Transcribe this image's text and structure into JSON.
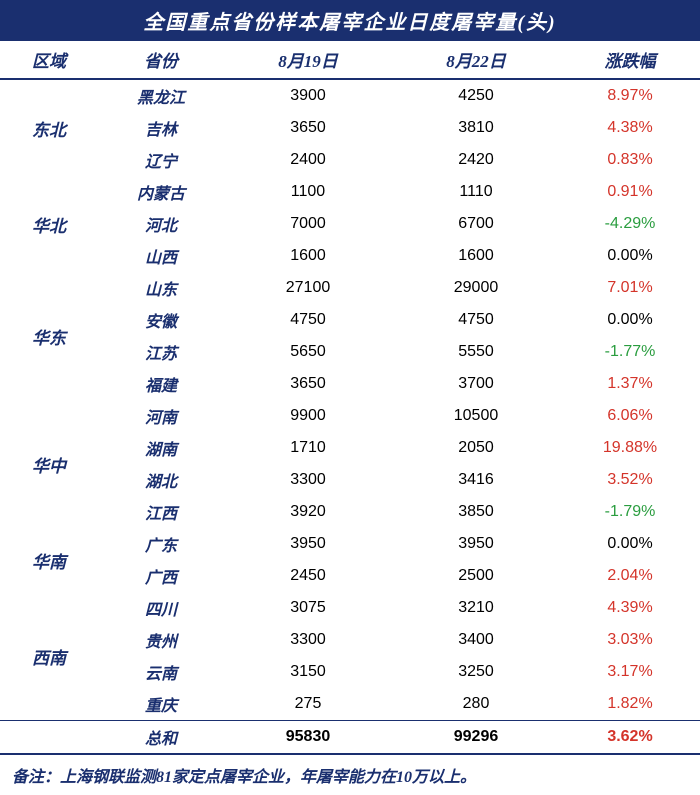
{
  "title": "全国重点省份样本屠宰企业日度屠宰量(头)",
  "headers": {
    "region": "区域",
    "province": "省份",
    "date1": "8月19日",
    "date2": "8月22日",
    "change": "涨跌幅"
  },
  "footer": "备注：上海钢联监测81家定点屠宰企业，年屠宰能力在10万以上。",
  "total": {
    "label": "总和",
    "v1": "95830",
    "v2": "99296",
    "chg": "3.62%",
    "cls": "up"
  },
  "colors": {
    "header_bg": "#1a2f6f",
    "header_text": "#ffffff",
    "up": "#d4342a",
    "down": "#2a9d3f",
    "body_text": "#1a2f6f"
  },
  "groups": [
    {
      "region": "东北",
      "rows": [
        {
          "p": "黑龙江",
          "v1": "3900",
          "v2": "4250",
          "chg": "8.97%",
          "cls": "up"
        },
        {
          "p": "吉林",
          "v1": "3650",
          "v2": "3810",
          "chg": "4.38%",
          "cls": "up"
        },
        {
          "p": "辽宁",
          "v1": "2400",
          "v2": "2420",
          "chg": "0.83%",
          "cls": "up"
        }
      ]
    },
    {
      "region": "华北",
      "rows": [
        {
          "p": "内蒙古",
          "v1": "1100",
          "v2": "1110",
          "chg": "0.91%",
          "cls": "up"
        },
        {
          "p": "河北",
          "v1": "7000",
          "v2": "6700",
          "chg": "-4.29%",
          "cls": "down"
        },
        {
          "p": "山西",
          "v1": "1600",
          "v2": "1600",
          "chg": "0.00%",
          "cls": "flat"
        }
      ]
    },
    {
      "region": "华东",
      "rows": [
        {
          "p": "山东",
          "v1": "27100",
          "v2": "29000",
          "chg": "7.01%",
          "cls": "up"
        },
        {
          "p": "安徽",
          "v1": "4750",
          "v2": "4750",
          "chg": "0.00%",
          "cls": "flat"
        },
        {
          "p": "江苏",
          "v1": "5650",
          "v2": "5550",
          "chg": "-1.77%",
          "cls": "down"
        },
        {
          "p": "福建",
          "v1": "3650",
          "v2": "3700",
          "chg": "1.37%",
          "cls": "up"
        }
      ]
    },
    {
      "region": "华中",
      "rows": [
        {
          "p": "河南",
          "v1": "9900",
          "v2": "10500",
          "chg": "6.06%",
          "cls": "up"
        },
        {
          "p": "湖南",
          "v1": "1710",
          "v2": "2050",
          "chg": "19.88%",
          "cls": "up"
        },
        {
          "p": "湖北",
          "v1": "3300",
          "v2": "3416",
          "chg": "3.52%",
          "cls": "up"
        },
        {
          "p": "江西",
          "v1": "3920",
          "v2": "3850",
          "chg": "-1.79%",
          "cls": "down"
        }
      ]
    },
    {
      "region": "华南",
      "rows": [
        {
          "p": "广东",
          "v1": "3950",
          "v2": "3950",
          "chg": "0.00%",
          "cls": "flat"
        },
        {
          "p": "广西",
          "v1": "2450",
          "v2": "2500",
          "chg": "2.04%",
          "cls": "up"
        }
      ]
    },
    {
      "region": "西南",
      "rows": [
        {
          "p": "四川",
          "v1": "3075",
          "v2": "3210",
          "chg": "4.39%",
          "cls": "up"
        },
        {
          "p": "贵州",
          "v1": "3300",
          "v2": "3400",
          "chg": "3.03%",
          "cls": "up"
        },
        {
          "p": "云南",
          "v1": "3150",
          "v2": "3250",
          "chg": "3.17%",
          "cls": "up"
        },
        {
          "p": "重庆",
          "v1": "275",
          "v2": "280",
          "chg": "1.82%",
          "cls": "up"
        }
      ]
    }
  ]
}
